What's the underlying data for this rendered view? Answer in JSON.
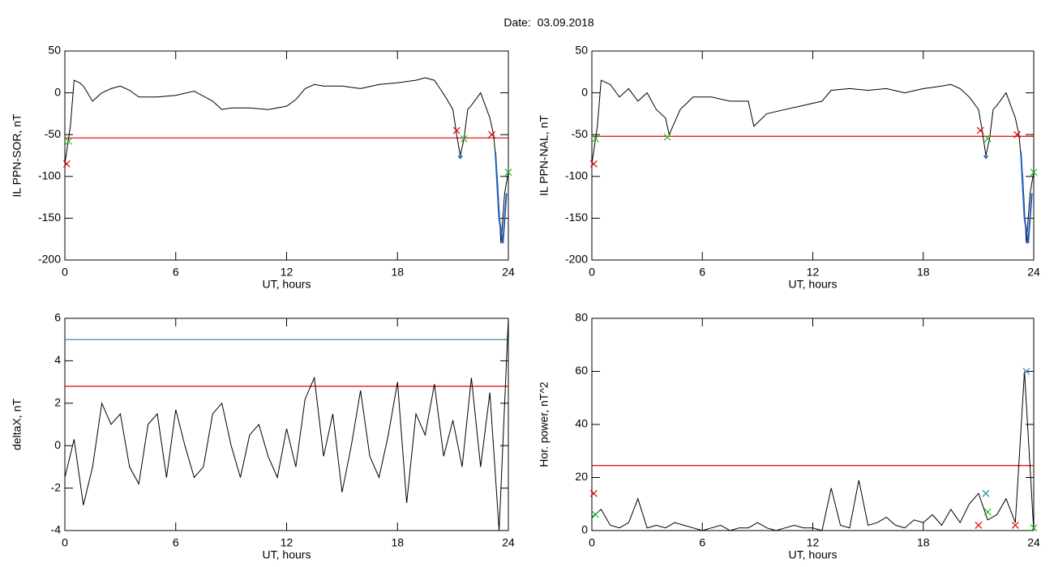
{
  "title": "Date:  03.09.2018",
  "chart_data": [
    {
      "type": "line",
      "xlabel": "UT, hours",
      "ylabel": "IL PPN-SOR, nT",
      "xlim": [
        0,
        24
      ],
      "xticks": [
        0,
        6,
        12,
        18,
        24
      ],
      "ylim": [
        -200,
        50
      ],
      "yticks": [
        50,
        0,
        -50,
        -100,
        -150,
        -200
      ],
      "series": [
        {
          "color": "#000000",
          "x": [
            0,
            0.3,
            0.5,
            0.8,
            1,
            1.5,
            2,
            2.5,
            3,
            3.5,
            4,
            5,
            6,
            7,
            8,
            8.5,
            9,
            10,
            11,
            12,
            12.5,
            13,
            13.5,
            14,
            15,
            16,
            17,
            18,
            19,
            19.5,
            20,
            20.3,
            20.6,
            21,
            21.2,
            21.4,
            21.6,
            21.8,
            22,
            22.5,
            23,
            23.2,
            23.4,
            23.6,
            23.8,
            24
          ],
          "values": [
            -85,
            -40,
            15,
            12,
            8,
            -10,
            0,
            5,
            8,
            3,
            -5,
            -5,
            -3,
            2,
            -10,
            -20,
            -18,
            -18,
            -20,
            -16,
            -8,
            5,
            10,
            8,
            8,
            5,
            10,
            12,
            15,
            18,
            15,
            5,
            -5,
            -20,
            -50,
            -75,
            -55,
            -20,
            -15,
            0,
            -30,
            -50,
            -100,
            -180,
            -120,
            -95
          ]
        },
        {
          "color": "#1f5fbf",
          "x": [
            21.3,
            21.4,
            21.5,
            22.4,
            23.3,
            23.5,
            23.7,
            23.9
          ],
          "values": [
            -75,
            -78,
            -75,
            null,
            -70,
            -150,
            -180,
            -120
          ]
        }
      ],
      "hlines": [
        {
          "value": -54,
          "color": "#e00000"
        }
      ],
      "markers": [
        {
          "color": "#e00000",
          "x": [
            0.1,
            21.2,
            23.1
          ],
          "values": [
            -85,
            -45,
            -50
          ]
        },
        {
          "color": "#22bb22",
          "x": [
            0.2,
            21.6,
            24
          ],
          "values": [
            -58,
            -55,
            -95
          ]
        }
      ]
    },
    {
      "type": "line",
      "xlabel": "UT, hours",
      "ylabel": "IL PPN-NAL, nT",
      "xlim": [
        0,
        24
      ],
      "xticks": [
        0,
        6,
        12,
        18,
        24
      ],
      "ylim": [
        -200,
        50
      ],
      "yticks": [
        50,
        0,
        -50,
        -100,
        -150,
        -200
      ],
      "series": [
        {
          "color": "#000000",
          "x": [
            0,
            0.3,
            0.5,
            1,
            1.5,
            2,
            2.5,
            3,
            3.5,
            4,
            4.2,
            4.8,
            5.5,
            6.5,
            7.5,
            8.5,
            8.8,
            9.5,
            10.5,
            11.5,
            12.5,
            13,
            14,
            15,
            16,
            17,
            18,
            19,
            19.5,
            20,
            20.5,
            21,
            21.2,
            21.4,
            21.6,
            21.8,
            22,
            22.5,
            23,
            23.2,
            23.4,
            23.6,
            23.8,
            24
          ],
          "values": [
            -85,
            -40,
            15,
            10,
            -5,
            5,
            -10,
            0,
            -20,
            -30,
            -50,
            -20,
            -5,
            -5,
            -10,
            -10,
            -40,
            -25,
            -20,
            -15,
            -10,
            3,
            5,
            3,
            5,
            0,
            5,
            8,
            10,
            5,
            -5,
            -20,
            -45,
            -75,
            -55,
            -20,
            -15,
            0,
            -30,
            -50,
            -100,
            -180,
            -120,
            -95
          ]
        },
        {
          "color": "#1f5fbf",
          "x": [
            21.3,
            21.4,
            21.5,
            22.4,
            23.3,
            23.5,
            23.7,
            23.9
          ],
          "values": [
            -75,
            -78,
            -75,
            null,
            -70,
            -150,
            -180,
            -120
          ]
        }
      ],
      "hlines": [
        {
          "value": -52,
          "color": "#e00000"
        }
      ],
      "markers": [
        {
          "color": "#e00000",
          "x": [
            0.1,
            21.1,
            23.1
          ],
          "values": [
            -85,
            -45,
            -50
          ]
        },
        {
          "color": "#22bb22",
          "x": [
            0.2,
            4.1,
            21.5,
            24
          ],
          "values": [
            -55,
            -53,
            -55,
            -95
          ]
        }
      ]
    },
    {
      "type": "line",
      "xlabel": "UT, hours",
      "ylabel": "deltaX, nT",
      "xlim": [
        0,
        24
      ],
      "xticks": [
        0,
        6,
        12,
        18,
        24
      ],
      "ylim": [
        -4,
        6
      ],
      "yticks": [
        6,
        4,
        2,
        0,
        -2,
        -4
      ],
      "series": [
        {
          "color": "#000000",
          "x": [
            0,
            0.5,
            1,
            1.5,
            2,
            2.5,
            3,
            3.5,
            4,
            4.5,
            5,
            5.5,
            6,
            6.5,
            7,
            7.5,
            8,
            8.5,
            9,
            9.5,
            10,
            10.5,
            11,
            11.5,
            12,
            12.5,
            13,
            13.5,
            14,
            14.5,
            15,
            15.5,
            16,
            16.5,
            17,
            17.5,
            18,
            18.5,
            19,
            19.5,
            20,
            20.5,
            21,
            21.5,
            22,
            22.5,
            23,
            23.5,
            24
          ],
          "values": [
            -1.5,
            0.3,
            -2.8,
            -1,
            2,
            1,
            1.5,
            -1,
            -1.8,
            1,
            1.5,
            -1.5,
            1.7,
            0,
            -1.5,
            -1,
            1.5,
            2,
            0,
            -1.5,
            0.5,
            1,
            -0.5,
            -1.5,
            0.8,
            -1,
            2.2,
            3.2,
            -0.5,
            1.5,
            -2.2,
            0,
            2.6,
            -0.5,
            -1.5,
            0.5,
            3,
            -2.7,
            1.5,
            0.5,
            2.9,
            -0.5,
            1.2,
            -1,
            3.2,
            -1,
            2.5,
            -4,
            6
          ]
        }
      ],
      "hlines": [
        {
          "value": 2.8,
          "color": "#e00000"
        },
        {
          "value": 5,
          "color": "#1a8a9a"
        }
      ],
      "markers": []
    },
    {
      "type": "line",
      "xlabel": "UT, hours",
      "ylabel": "Hor. power, nT^2",
      "xlim": [
        0,
        24
      ],
      "xticks": [
        0,
        6,
        12,
        18,
        24
      ],
      "ylim": [
        0,
        80
      ],
      "yticks": [
        80,
        60,
        40,
        20,
        0
      ],
      "series": [
        {
          "color": "#000000",
          "x": [
            0,
            0.5,
            1,
            1.5,
            2,
            2.5,
            3,
            3.5,
            4,
            4.5,
            5,
            5.5,
            6,
            6.5,
            7,
            7.5,
            8,
            8.5,
            9,
            9.5,
            10,
            10.5,
            11,
            11.5,
            12,
            12.5,
            13,
            13.5,
            14,
            14.5,
            15,
            15.5,
            16,
            16.5,
            17,
            17.5,
            18,
            18.5,
            19,
            19.5,
            20,
            20.5,
            21,
            21.5,
            22,
            22.5,
            23,
            23.5,
            24
          ],
          "values": [
            5,
            8,
            2,
            1,
            3,
            12,
            1,
            2,
            1,
            3,
            2,
            1,
            0,
            1,
            2,
            0,
            1,
            1,
            3,
            1,
            0,
            1,
            2,
            1,
            1,
            0,
            16,
            2,
            1,
            19,
            2,
            3,
            5,
            2,
            1,
            4,
            3,
            6,
            2,
            8,
            3,
            10,
            14,
            4,
            6,
            12,
            3,
            60,
            0
          ]
        }
      ],
      "hlines": [
        {
          "value": 24.5,
          "color": "#e00000"
        }
      ],
      "markers": [
        {
          "color": "#e00000",
          "x": [
            0.1,
            21,
            23
          ],
          "values": [
            14,
            2,
            2
          ]
        },
        {
          "color": "#22bb22",
          "x": [
            0.2,
            21.5,
            24
          ],
          "values": [
            6,
            7,
            1
          ]
        },
        {
          "color": "#1a8a9a",
          "x": [
            21.4,
            23.6
          ],
          "values": [
            14,
            60
          ]
        }
      ]
    }
  ]
}
